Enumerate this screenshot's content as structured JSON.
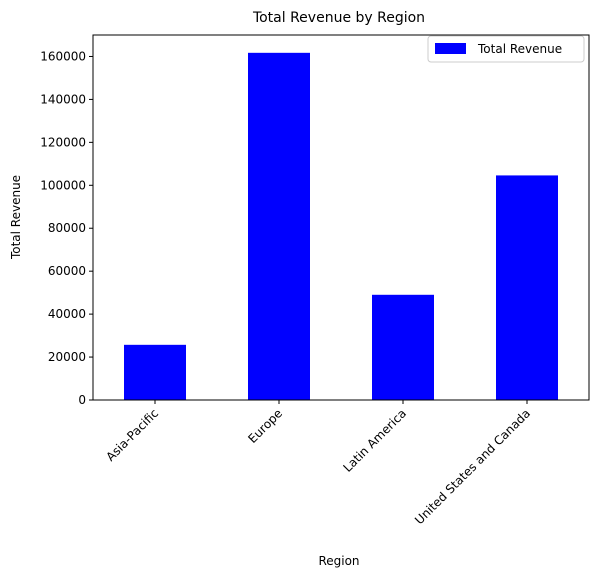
{
  "chart_data": {
    "type": "bar",
    "title": "Total Revenue by Region",
    "xlabel": "Region",
    "ylabel": "Total Revenue",
    "categories": [
      "Asia-Pacific",
      "Europe",
      "Latin America",
      "United States and Canada"
    ],
    "series": [
      {
        "name": "Total Revenue",
        "values": [
          25700,
          161700,
          49000,
          104600
        ],
        "color": "#0000ff"
      }
    ],
    "ylim": [
      0,
      170000
    ],
    "yticks": [
      0,
      20000,
      40000,
      60000,
      80000,
      100000,
      120000,
      140000,
      160000
    ],
    "ytick_labels": [
      "0",
      "20000",
      "40000",
      "60000",
      "80000",
      "100000",
      "120000",
      "140000",
      "160000"
    ],
    "grid": false,
    "legend_position": "upper right"
  }
}
